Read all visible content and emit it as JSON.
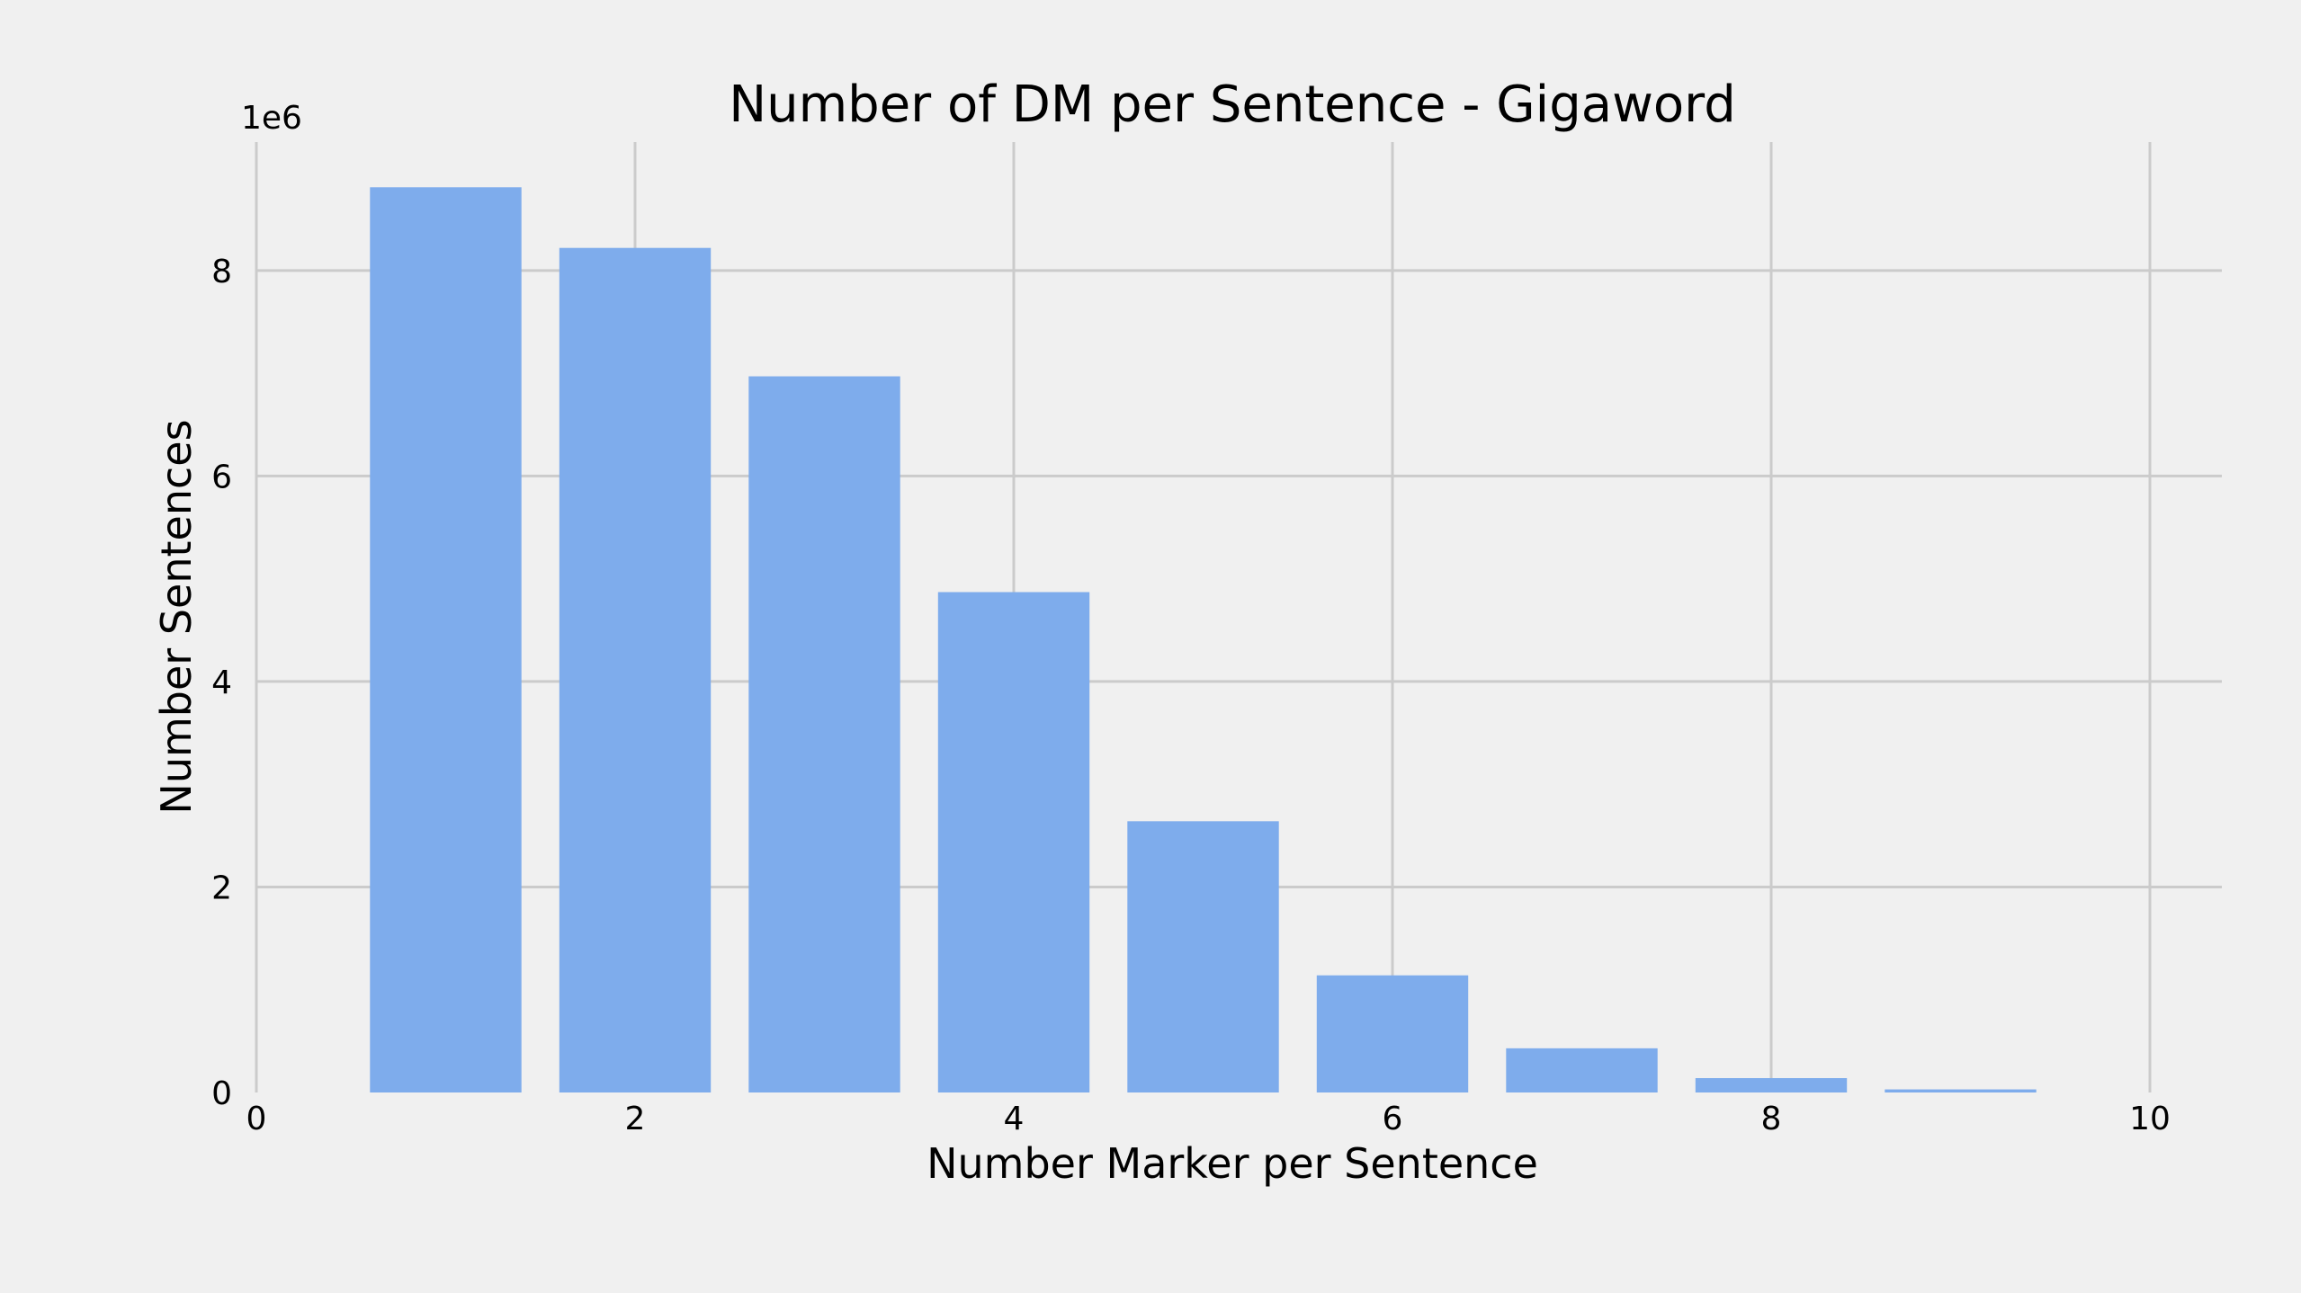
{
  "chart_data": {
    "type": "bar",
    "title": "Number of DM per Sentence - Gigaword",
    "xlabel": "Number Marker per Sentence",
    "ylabel": "Number Sentences",
    "y_offset_label": "1e6",
    "x": [
      1,
      2,
      3,
      4,
      5,
      6,
      7,
      8,
      9
    ],
    "values": [
      8.81,
      8.22,
      6.97,
      4.87,
      2.64,
      1.14,
      0.43,
      0.14,
      0.03
    ],
    "bar_width": 0.8,
    "xlim": [
      0,
      10.38
    ],
    "ylim": [
      0,
      9.25
    ],
    "xticks": [
      0,
      2,
      4,
      6,
      8,
      10
    ],
    "yticks": [
      0,
      2,
      4,
      6,
      8
    ],
    "grid": true,
    "bar_color": "#7eacec",
    "background_color": "#f0f0f0",
    "grid_color": "#cbcbcb"
  }
}
